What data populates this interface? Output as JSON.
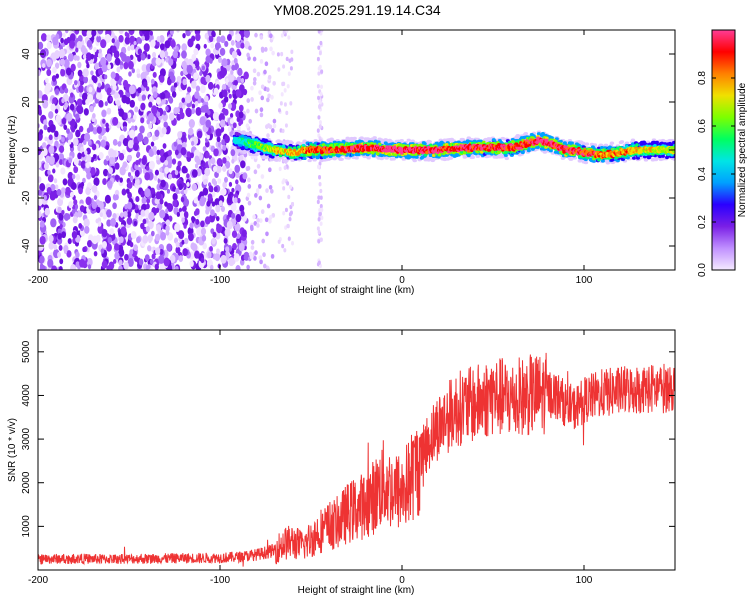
{
  "title": "YM08.2025.291.19.14.C34",
  "chart_data": [
    {
      "type": "heatmap",
      "title": "YM08.2025.291.19.14.C34",
      "xlabel": "Height of straight line (km)",
      "ylabel": "Frequency (Hz)",
      "xlim": [
        -200,
        150
      ],
      "ylim": [
        -50,
        50
      ],
      "x_ticks": [
        -200,
        -100,
        0,
        100
      ],
      "y_ticks": [
        -40,
        -20,
        0,
        20,
        40
      ],
      "colorbar": {
        "label": "Normalized spectral amplitude",
        "range": [
          0,
          1
        ],
        "ticks": [
          0.0,
          0.2,
          0.4,
          0.6,
          0.8
        ],
        "colors": [
          "#f5eaff",
          "#c090ff",
          "#7a1fe6",
          "#2a00ff",
          "#00a0ff",
          "#00e5e5",
          "#00ff60",
          "#7dff00",
          "#f0e000",
          "#ff8000",
          "#ff0000",
          "#ff3c96"
        ]
      },
      "noise_region": {
        "x_range": [
          -200,
          -85
        ],
        "freq_range": [
          -50,
          50
        ],
        "amplitude": 0.1
      },
      "sparse_stripes": [
        {
          "x_range": [
            -68,
            -60
          ]
        },
        {
          "x_range": [
            -46,
            -44
          ]
        }
      ],
      "ridge": {
        "x": [
          -90,
          -80,
          -70,
          -60,
          -50,
          -40,
          -20,
          0,
          20,
          40,
          60,
          70,
          75,
          80,
          90,
          100,
          110,
          120,
          130,
          140,
          150
        ],
        "freq": [
          4,
          2,
          0,
          -1,
          0,
          0,
          1,
          0,
          0,
          1,
          1,
          3,
          4,
          3,
          0,
          -1,
          -2,
          -1,
          0,
          0,
          0
        ],
        "amplitude": [
          0.3,
          0.45,
          0.55,
          0.6,
          0.7,
          0.75,
          0.8,
          0.85,
          0.8,
          0.8,
          0.75,
          0.8,
          0.85,
          0.8,
          0.8,
          0.75,
          0.7,
          0.65,
          0.6,
          0.55,
          0.5
        ]
      }
    },
    {
      "type": "line",
      "xlabel": "Height of straight line (km)",
      "ylabel": "SNR (10 * v/v)",
      "xlim": [
        -200,
        150
      ],
      "ylim": [
        0,
        5500
      ],
      "x_ticks": [
        -200,
        -100,
        0,
        100
      ],
      "y_ticks": [
        1000,
        2000,
        3000,
        4000,
        5000
      ],
      "color": "#ee3333",
      "series": [
        {
          "name": "SNR",
          "x": [
            -200,
            -180,
            -160,
            -140,
            -120,
            -100,
            -90,
            -80,
            -70,
            -65,
            -60,
            -55,
            -50,
            -45,
            -40,
            -35,
            -30,
            -25,
            -20,
            -15,
            -10,
            -5,
            0,
            5,
            10,
            15,
            20,
            25,
            30,
            35,
            40,
            45,
            50,
            55,
            60,
            70,
            80,
            85,
            90,
            95,
            100,
            110,
            120,
            130,
            140,
            150
          ],
          "values": [
            250,
            260,
            250,
            260,
            270,
            280,
            300,
            350,
            450,
            600,
            650,
            550,
            700,
            900,
            1000,
            1100,
            1300,
            1400,
            1500,
            1700,
            2000,
            1800,
            1800,
            2100,
            2500,
            3000,
            3300,
            3500,
            3700,
            3750,
            3800,
            3900,
            4000,
            3950,
            3900,
            4000,
            4050,
            4000,
            3800,
            3700,
            3900,
            4050,
            4100,
            4150,
            4150,
            4200
          ]
        }
      ]
    }
  ]
}
